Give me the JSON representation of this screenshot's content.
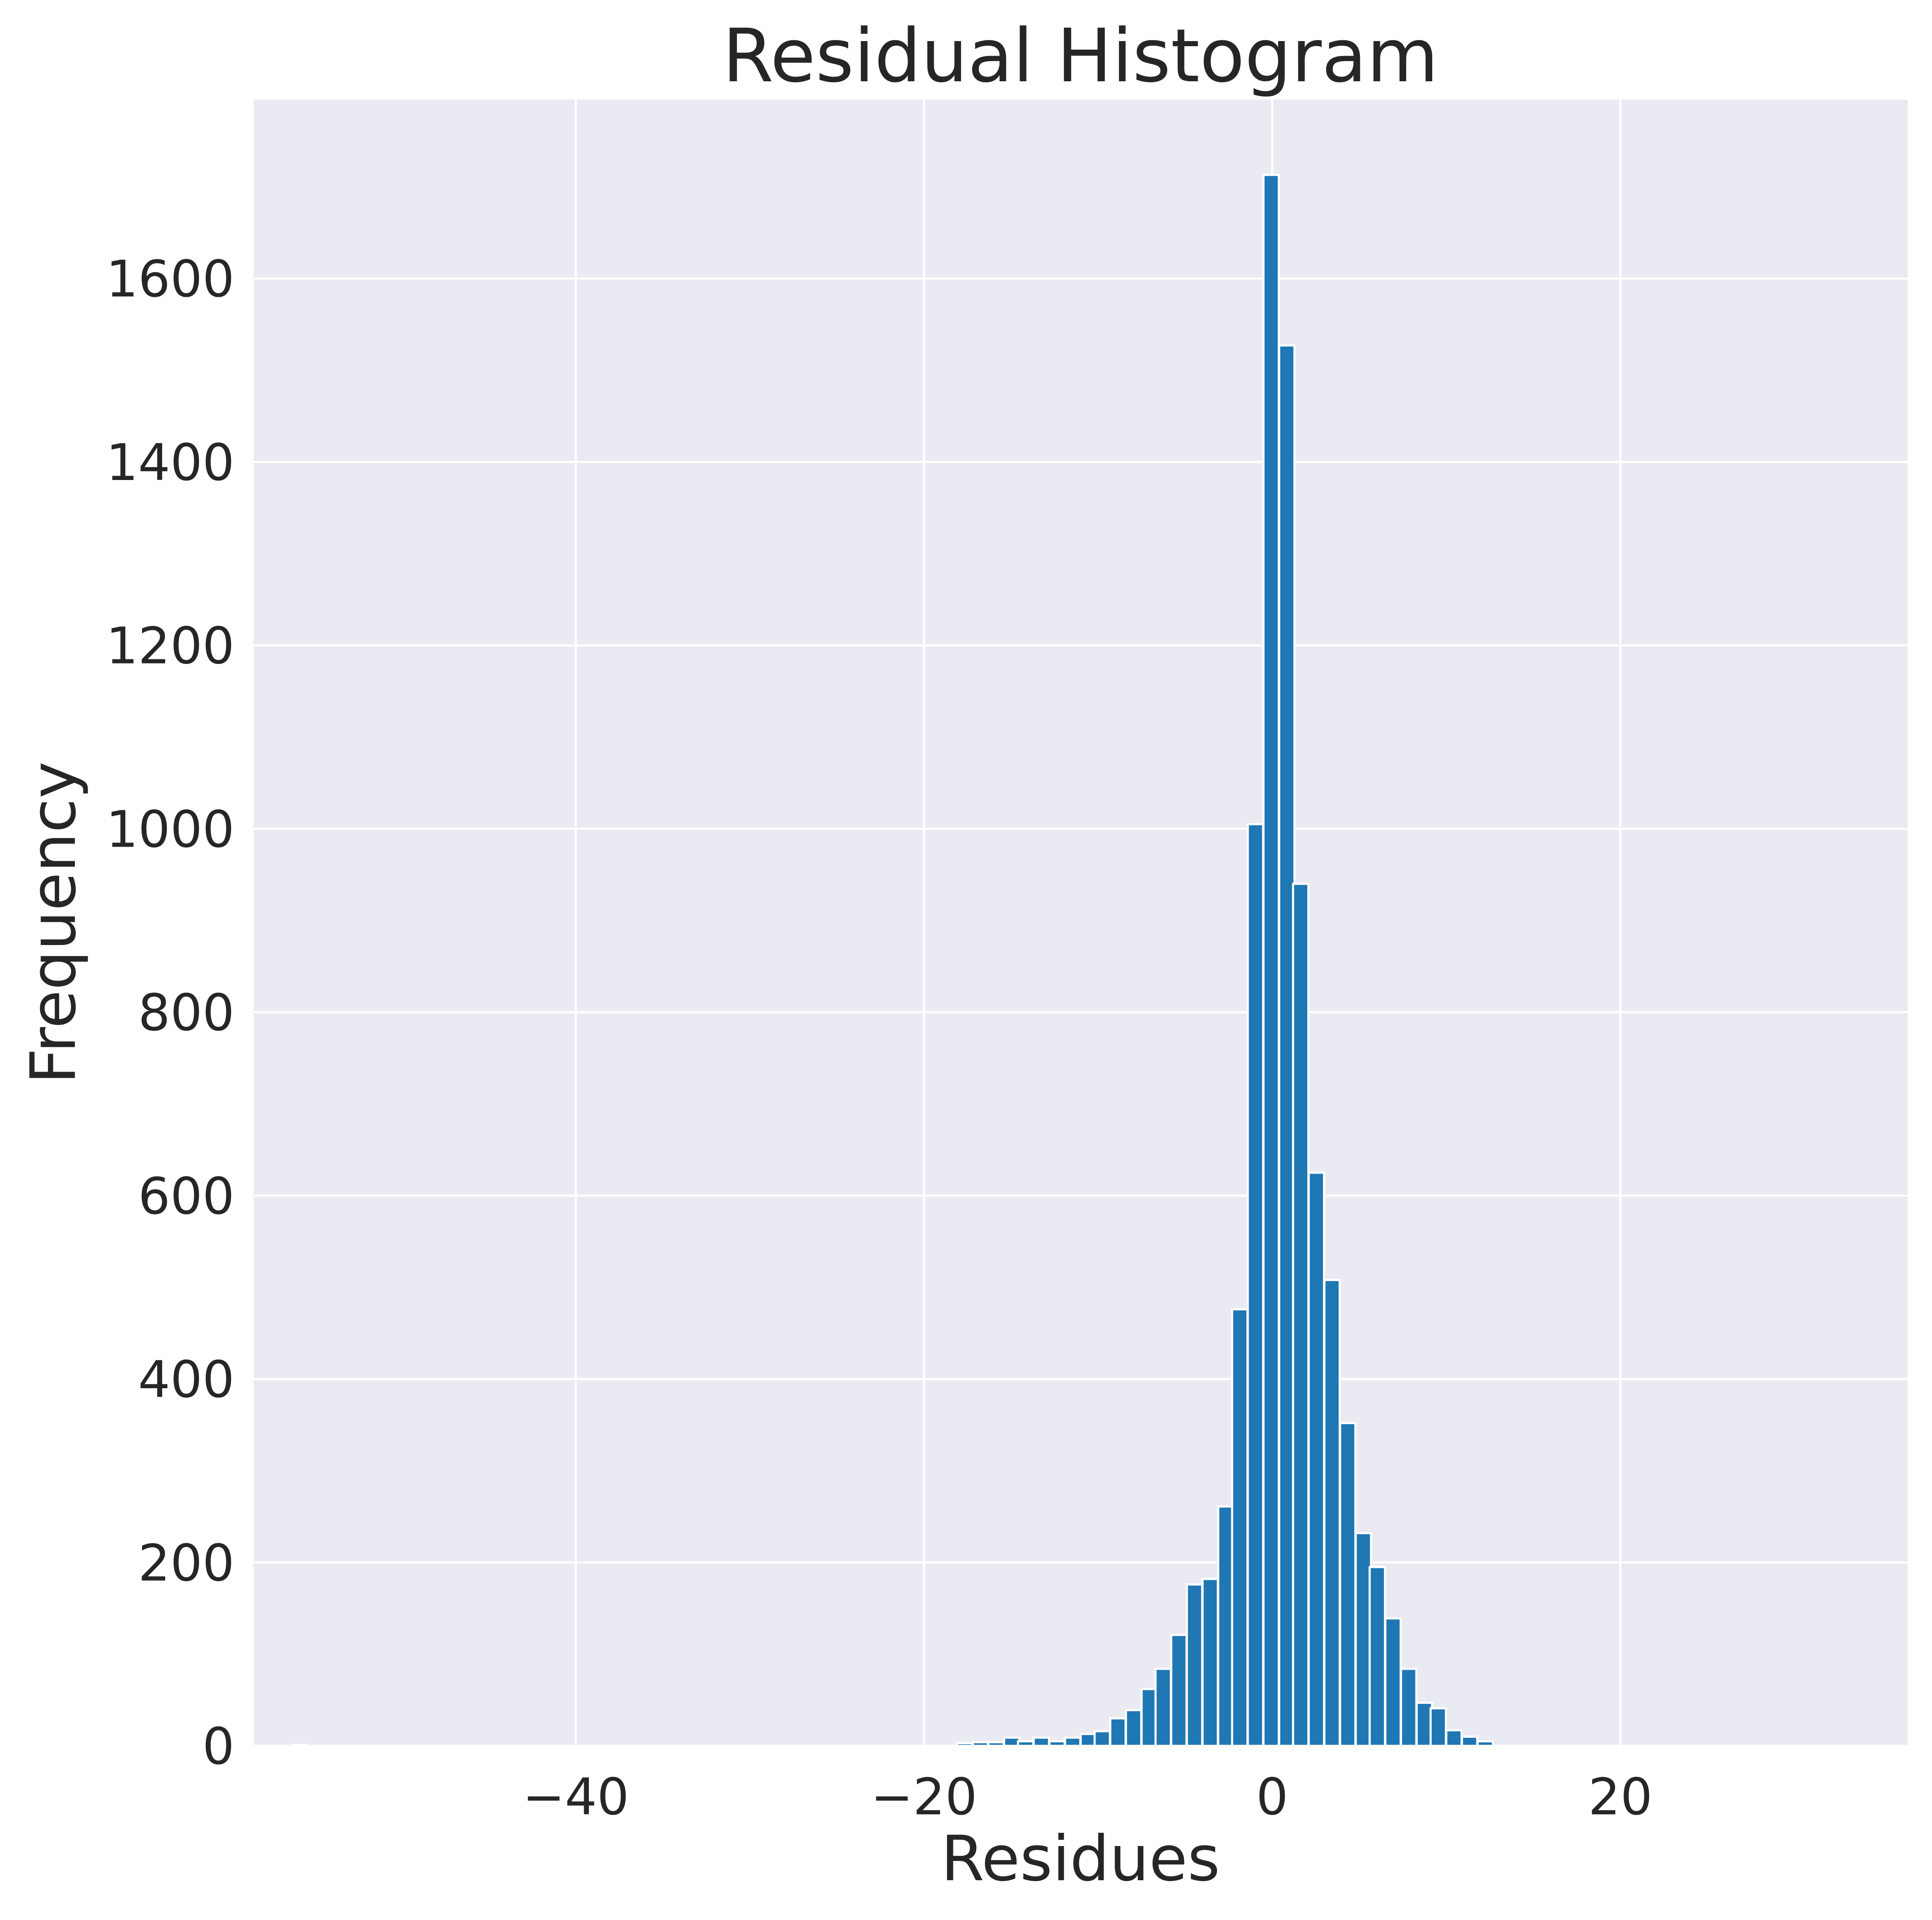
{
  "chart_data": {
    "type": "bar",
    "title": "Residual Histogram",
    "xlabel": "Residues",
    "ylabel": "Frequency",
    "xlim": [
      -58.5,
      36.5
    ],
    "ylim": [
      0,
      1795
    ],
    "xticks": [
      -40,
      -20,
      0,
      20
    ],
    "xtick_labels": [
      "−40",
      "−20",
      "0",
      "20"
    ],
    "yticks": [
      0,
      200,
      400,
      600,
      800,
      1000,
      1200,
      1400,
      1600
    ],
    "ytick_labels": [
      "0",
      "200",
      "400",
      "600",
      "800",
      "1000",
      "1200",
      "1400",
      "1600"
    ],
    "grid": true,
    "bin_width": 0.88,
    "bin_left_edges": [
      -56.3,
      -18.1,
      -17.2,
      -16.3,
      -15.4,
      -14.6,
      -13.7,
      -12.8,
      -11.9,
      -11.0,
      -10.2,
      -9.3,
      -8.4,
      -7.5,
      -6.7,
      -5.8,
      -4.9,
      -4.0,
      -3.1,
      -2.3,
      -1.4,
      -0.5,
      0.4,
      1.2,
      2.1,
      3.0,
      3.9,
      4.8,
      5.6,
      6.5,
      7.4,
      8.3,
      9.1,
      10.0,
      10.9,
      11.8
    ],
    "values": [
      1,
      3,
      4,
      4,
      9,
      5,
      9,
      5,
      9,
      13,
      16,
      30,
      39,
      62,
      84,
      121,
      176,
      182,
      261,
      476,
      1005,
      1713,
      1527,
      940,
      625,
      508,
      352,
      232,
      195,
      139,
      84,
      47,
      41,
      17,
      10,
      5
    ],
    "colors": {
      "bar": "#1f77b4",
      "bar_edge": "#ffffff",
      "plot_background": "#eaeaf2",
      "grid": "#ffffff",
      "figure_background": "#ffffff",
      "text": "#262626"
    }
  }
}
